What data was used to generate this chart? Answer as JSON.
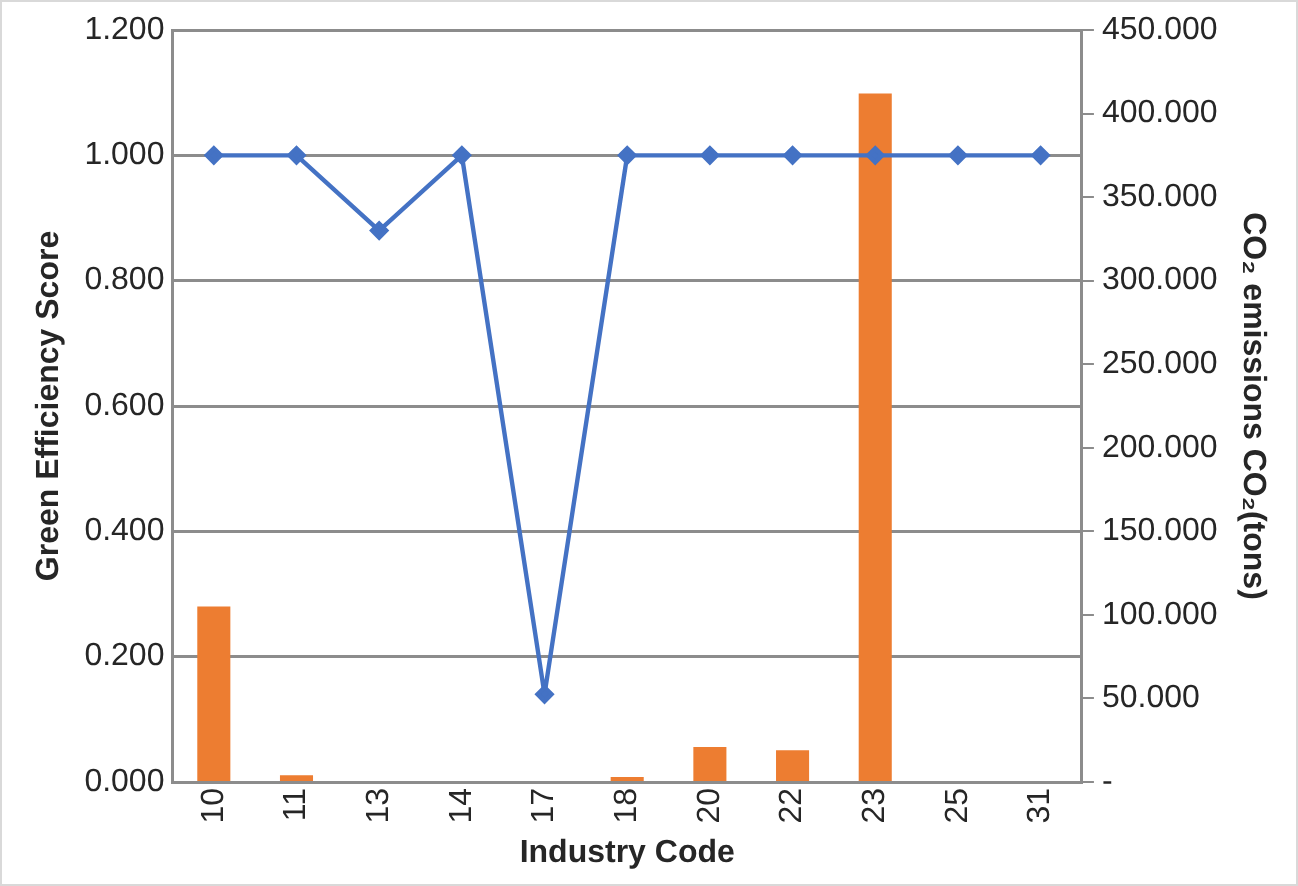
{
  "chart_data": {
    "type": "bar",
    "xlabel": "Industry Code",
    "ylabel": "Green Efficiency Score",
    "y2label": "CO₂ emissions CO₂(tons)",
    "categories": [
      "10",
      "11",
      "13",
      "14",
      "17",
      "18",
      "20",
      "22",
      "23",
      "25",
      "31"
    ],
    "series": [
      {
        "axis": "y2",
        "color": "#ed7d31",
        "values": [
          105,
          4,
          0,
          0,
          0,
          3,
          21,
          19,
          412,
          0,
          0
        ]
      },
      {
        "type": "line",
        "axis": "y",
        "color": "#4472c4",
        "marker": "diamond",
        "values": [
          1,
          1,
          0.88,
          1,
          0.14,
          1,
          1,
          1,
          1,
          1,
          1
        ]
      }
    ],
    "ylim": [
      0,
      1.2
    ],
    "yticks": [
      {
        "value": 0,
        "label": "0.000"
      },
      {
        "value": 0.2,
        "label": "0.200"
      },
      {
        "value": 0.4,
        "label": "0.400"
      },
      {
        "value": 0.6,
        "label": "0.600"
      },
      {
        "value": 0.8,
        "label": "0.800"
      },
      {
        "value": 1,
        "label": "1.000"
      },
      {
        "value": 1.2,
        "label": "1.200"
      }
    ],
    "y2lim": [
      0,
      450
    ],
    "y2ticks": [
      {
        "value": 0,
        "label": "-"
      },
      {
        "value": 50,
        "label": "50.000"
      },
      {
        "value": 100,
        "label": "100.000"
      },
      {
        "value": 150,
        "label": "150.000"
      },
      {
        "value": 200,
        "label": "200.000"
      },
      {
        "value": 250,
        "label": "250.000"
      },
      {
        "value": 300,
        "label": "300.000"
      },
      {
        "value": 350,
        "label": "350.000"
      },
      {
        "value": 400,
        "label": "400.000"
      },
      {
        "value": 450,
        "label": "450.000"
      }
    ],
    "grid": "y",
    "legend": false
  }
}
